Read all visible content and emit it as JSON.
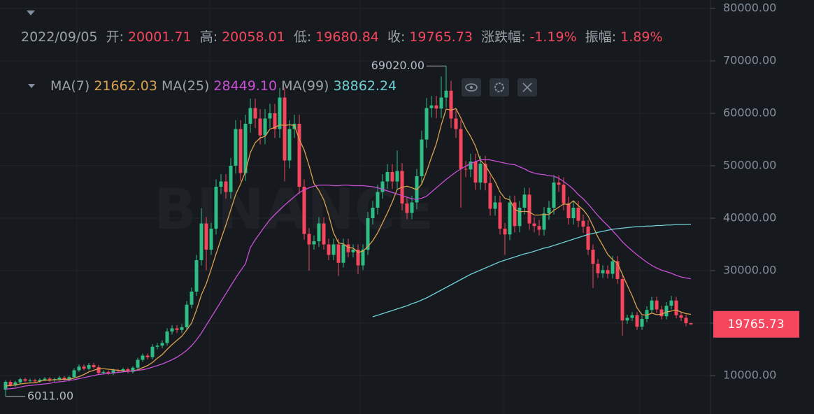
{
  "chart_data": {
    "type": "candlestick",
    "watermark": "BINANCE",
    "header": {
      "date": "2022/09/05",
      "open_label": "开:",
      "high_label": "高:",
      "low_label": "低:",
      "close_label": "收:",
      "change_label": "涨跌幅:",
      "amplitude_label": "振幅:",
      "change": {
        "value": -1.19,
        "label": "-1.19%"
      },
      "amplitude": {
        "value": 1.89,
        "label": "1.89%"
      }
    },
    "up_color": "#2ebd85",
    "down_color": "#f6465d",
    "ylim": [
      2667,
      81600
    ],
    "yticks": [
      {
        "value": 10000,
        "label": "10000.00"
      },
      {
        "value": 20000,
        "label": "20000.00"
      },
      {
        "value": 30000,
        "label": "30000.00"
      },
      {
        "value": 40000,
        "label": "40000.00"
      },
      {
        "value": 50000,
        "label": "50000.00"
      },
      {
        "value": 60000,
        "label": "60000.00"
      },
      {
        "value": 70000,
        "label": "70000.00"
      },
      {
        "value": 80000,
        "label": "80000.00"
      }
    ],
    "annotations": [
      {
        "value": 69020,
        "label": "69020.00"
      },
      {
        "value": 6011,
        "label": "6011.00"
      }
    ],
    "open": [
      7300,
      8800,
      8100,
      8700,
      9300,
      9000,
      9100,
      8900,
      9200,
      9400,
      9100,
      9300,
      9600,
      9200,
      9700,
      11000,
      11700,
      11300,
      12000,
      11600,
      10500,
      10700,
      10400,
      11000,
      10900,
      11200,
      10700,
      11500,
      13000,
      13800,
      13500,
      15500,
      15700,
      16200,
      18400,
      19000,
      18700,
      19200,
      23500,
      26000,
      32000,
      39000,
      34000,
      38000,
      46000,
      47000,
      45000,
      50000,
      57000,
      48600,
      58000,
      61000,
      59000,
      55800,
      59000,
      60000,
      57000,
      63000,
      51000,
      57000,
      58000,
      46000,
      37000,
      35000,
      35600,
      39000,
      35000,
      33000,
      35000,
      31500,
      35000,
      33500,
      34000,
      31000,
      34000,
      40000,
      42000,
      45000,
      47000,
      48800,
      47000,
      49000,
      42800,
      41000,
      43000,
      48000,
      55000,
      61000,
      61500,
      60900,
      63000,
      64300,
      59000,
      57000,
      49400,
      49300,
      50800,
      46800,
      50400,
      46700,
      41800,
      43000,
      38000,
      36900,
      43000,
      38500,
      42000,
      44500,
      39000,
      38500,
      37800,
      40900,
      42000,
      46800,
      46400,
      42800,
      40000,
      42000,
      39500,
      38400,
      34000,
      31300,
      29500,
      30100,
      29400,
      31800,
      28400,
      20500,
      21000,
      21500,
      19300,
      20800,
      22500,
      24300,
      22600,
      21300,
      23300,
      24300,
      21500,
      21000,
      20001.71
    ],
    "high": [
      9100,
      9100,
      9000,
      9600,
      9600,
      9400,
      9400,
      9500,
      9700,
      9700,
      9600,
      9900,
      9900,
      10000,
      11400,
      12100,
      12100,
      12400,
      12400,
      12000,
      11000,
      11000,
      11300,
      11300,
      11500,
      11500,
      11800,
      13400,
      14200,
      14200,
      16000,
      16200,
      16700,
      19000,
      19600,
      19600,
      19800,
      24200,
      26800,
      33000,
      41900,
      40200,
      39100,
      47400,
      48400,
      48400,
      51500,
      58700,
      58700,
      59700,
      62800,
      62800,
      60800,
      60800,
      61800,
      61800,
      64800,
      64900,
      58700,
      59700,
      59700,
      47400,
      38100,
      36700,
      40200,
      40200,
      36100,
      36100,
      36100,
      36100,
      36100,
      35000,
      35000,
      35000,
      41200,
      43300,
      46400,
      48400,
      50300,
      50300,
      52900,
      50500,
      44100,
      44300,
      49400,
      56700,
      62900,
      63300,
      63300,
      67000,
      69020,
      66200,
      60800,
      58700,
      50900,
      52300,
      52300,
      51900,
      51900,
      48100,
      44300,
      44300,
      39100,
      44300,
      44300,
      43300,
      45800,
      45800,
      40200,
      39700,
      42100,
      43300,
      48200,
      48200,
      47800,
      44100,
      43300,
      43300,
      40700,
      39600,
      35000,
      32200,
      31000,
      31000,
      32800,
      32800,
      29300,
      21600,
      22100,
      22100,
      21400,
      23200,
      25000,
      25000,
      23300,
      24000,
      25200,
      25000,
      22100,
      21600,
      20058.01
    ],
    "low": [
      6011,
      7900,
      7900,
      8400,
      8700,
      8700,
      8600,
      8600,
      8900,
      8800,
      8800,
      9000,
      8900,
      8900,
      9400,
      10700,
      11000,
      11000,
      11300,
      10200,
      10200,
      10100,
      10100,
      10600,
      10600,
      10400,
      10400,
      11200,
      12600,
      13100,
      13100,
      15000,
      15200,
      15700,
      17800,
      18100,
      18100,
      18600,
      22800,
      25200,
      31000,
      30100,
      33000,
      36900,
      44600,
      43700,
      43700,
      48500,
      47100,
      47100,
      56300,
      57200,
      54100,
      54100,
      57200,
      55300,
      55300,
      47000,
      49500,
      55300,
      44600,
      35900,
      30000,
      34000,
      34500,
      34000,
      32000,
      32000,
      29000,
      30600,
      32500,
      32500,
      29300,
      30100,
      33000,
      38800,
      40700,
      43700,
      45600,
      45600,
      45600,
      41500,
      39800,
      39800,
      41700,
      46600,
      53400,
      59200,
      59100,
      59100,
      61100,
      57200,
      55300,
      42000,
      47800,
      47800,
      45400,
      45400,
      45300,
      40500,
      40500,
      36900,
      33000,
      35800,
      37300,
      37300,
      40700,
      37800,
      37300,
      36700,
      36700,
      39700,
      40700,
      45000,
      41500,
      38800,
      38800,
      38300,
      37200,
      33000,
      26700,
      28600,
      28600,
      28500,
      28500,
      27500,
      17600,
      19900,
      20400,
      18700,
      18700,
      20200,
      21800,
      21900,
      20700,
      20700,
      22600,
      20900,
      20400,
      19400,
      19680.84
    ],
    "close": [
      8800,
      8100,
      8700,
      9300,
      9000,
      9100,
      8900,
      9200,
      9400,
      9100,
      9300,
      9600,
      9200,
      9700,
      11000,
      11700,
      11300,
      12000,
      11600,
      10500,
      10700,
      10400,
      11000,
      10900,
      11200,
      10700,
      11500,
      13000,
      13800,
      13500,
      15500,
      15700,
      16200,
      18400,
      19000,
      18700,
      19200,
      23500,
      26000,
      32000,
      39000,
      34000,
      38000,
      46000,
      47000,
      45000,
      50000,
      57000,
      48600,
      58000,
      61000,
      59000,
      55800,
      59000,
      60000,
      57000,
      63000,
      51000,
      57000,
      58000,
      46000,
      37000,
      35000,
      35600,
      39000,
      35000,
      33000,
      35000,
      31500,
      35000,
      33500,
      34000,
      31000,
      34000,
      40000,
      42000,
      45000,
      47000,
      48800,
      47000,
      49000,
      42800,
      41000,
      43000,
      48000,
      55000,
      61000,
      61500,
      60900,
      63000,
      64300,
      59000,
      57000,
      49400,
      49300,
      50800,
      46800,
      50400,
      46700,
      41800,
      43000,
      38000,
      36900,
      43000,
      38500,
      42000,
      44500,
      39000,
      38500,
      37800,
      40900,
      42000,
      46800,
      46400,
      42800,
      40000,
      42000,
      39500,
      38400,
      34000,
      31300,
      29500,
      30100,
      29400,
      31800,
      28400,
      20500,
      21000,
      21500,
      19300,
      20800,
      22500,
      24300,
      22600,
      21300,
      23300,
      24300,
      21500,
      21000,
      20000,
      19765.73
    ],
    "series": [
      {
        "name": "MA(7)",
        "color": "#d9a150",
        "values": [
          8000,
          8100,
          8200,
          8400,
          8500,
          8600,
          8600,
          8900,
          9100,
          9100,
          9200,
          9200,
          9300,
          9300,
          9500,
          9800,
          10200,
          10700,
          11000,
          11300,
          11300,
          11200,
          11100,
          11000,
          10900,
          10800,
          10900,
          11100,
          11500,
          11900,
          12500,
          13300,
          14000,
          15000,
          15900,
          16700,
          17500,
          18700,
          20000,
          22500,
          25400,
          27500,
          30300,
          33200,
          36000,
          38700,
          41600,
          44500,
          46500,
          48900,
          52500,
          54400,
          55300,
          55600,
          57000,
          57300,
          57800,
          57700,
          57800,
          57700,
          55000,
          53000,
          50000,
          46600,
          45300,
          43500,
          40600,
          37200,
          35300,
          35100,
          34400,
          34300,
          33500,
          33700,
          34600,
          35700,
          37200,
          39100,
          41000,
          43100,
          45500,
          45900,
          46100,
          45800,
          45400,
          46500,
          48900,
          51600,
          54200,
          57800,
          60800,
          60600,
          60900,
          59100,
          57100,
          55600,
          53700,
          51000,
          50100,
          48500,
          47000,
          45000,
          43800,
          43500,
          41700,
          41200,
          41300,
          41200,
          40600,
          40600,
          40700,
          40700,
          41500,
          42100,
          42700,
          42600,
          43300,
          42400,
          41600,
          40400,
          38500,
          36400,
          34800,
          33100,
          32100,
          31400,
          29300,
          27200,
          25200,
          22900,
          21600,
          21500,
          21900,
          21600,
          21700,
          22100,
          22300,
          22500,
          22100,
          21800,
          21662.03
        ]
      },
      {
        "name": "MA(25)",
        "color": "#c94fd6",
        "values": [
          7400,
          7500,
          7600,
          7800,
          8000,
          8100,
          8200,
          8300,
          8400,
          8500,
          8700,
          8800,
          8900,
          9100,
          9200,
          9400,
          9600,
          9800,
          10000,
          10200,
          10300,
          10400,
          10500,
          10600,
          10700,
          10800,
          10900,
          11000,
          11100,
          11300,
          11600,
          11900,
          12200,
          12600,
          13000,
          13500,
          14100,
          14800,
          15700,
          16800,
          18100,
          19600,
          21100,
          22600,
          24100,
          25600,
          27100,
          28600,
          30000,
          31300,
          34400,
          35900,
          37200,
          38500,
          39700,
          40700,
          41600,
          42500,
          43300,
          44100,
          44900,
          45400,
          45800,
          46100,
          46300,
          46300,
          46300,
          46200,
          46200,
          46300,
          46300,
          46200,
          46200,
          46200,
          46100,
          46000,
          45800,
          45500,
          45200,
          44900,
          44600,
          44300,
          44000,
          43700,
          43600,
          43800,
          44200,
          45000,
          45800,
          46600,
          47400,
          48100,
          48800,
          49400,
          49900,
          50400,
          50800,
          51100,
          51200,
          51100,
          50900,
          50700,
          50500,
          50300,
          50200,
          49800,
          49400,
          48900,
          48600,
          48400,
          48300,
          48100,
          48000,
          47600,
          47000,
          46300,
          45500,
          44500,
          43700,
          42700,
          41600,
          40500,
          39500,
          38600,
          37600,
          36600,
          35500,
          34600,
          33800,
          33000,
          32300,
          31600,
          31000,
          30500,
          30100,
          29800,
          29500,
          29100,
          28800,
          28600,
          28449.1
        ]
      },
      {
        "name": "MA(99)",
        "color": "#6fcfd3",
        "values": [
          null,
          null,
          null,
          null,
          null,
          null,
          null,
          null,
          null,
          null,
          null,
          null,
          null,
          null,
          null,
          null,
          null,
          null,
          null,
          null,
          null,
          null,
          null,
          null,
          null,
          null,
          null,
          null,
          null,
          null,
          null,
          null,
          null,
          null,
          null,
          null,
          null,
          null,
          null,
          null,
          null,
          null,
          null,
          null,
          null,
          null,
          null,
          null,
          null,
          null,
          null,
          null,
          null,
          null,
          null,
          null,
          null,
          null,
          null,
          null,
          null,
          null,
          null,
          null,
          null,
          null,
          null,
          null,
          null,
          null,
          null,
          null,
          null,
          null,
          null,
          21200,
          21500,
          21800,
          22100,
          22400,
          22700,
          23000,
          23300,
          23700,
          24000,
          24400,
          24800,
          25300,
          25800,
          26300,
          26800,
          27300,
          27800,
          28300,
          28800,
          29300,
          29700,
          30100,
          30500,
          30900,
          31300,
          31700,
          32000,
          32300,
          32600,
          32900,
          33200,
          33400,
          33700,
          34000,
          34300,
          34500,
          34800,
          35100,
          35400,
          35700,
          36000,
          36300,
          36600,
          36900,
          37100,
          37300,
          37500,
          37700,
          37900,
          38000,
          38100,
          38200,
          38300,
          38400,
          38400,
          38500,
          38500,
          38600,
          38600,
          38700,
          38700,
          38800,
          38800,
          38800,
          38862.24
        ]
      }
    ],
    "ma_current": [
      {
        "value": 21662.03,
        "label": "21662.03"
      },
      {
        "value": 28449.1,
        "label": "28449.10"
      },
      {
        "value": 38862.24,
        "label": "38862.24"
      }
    ]
  }
}
